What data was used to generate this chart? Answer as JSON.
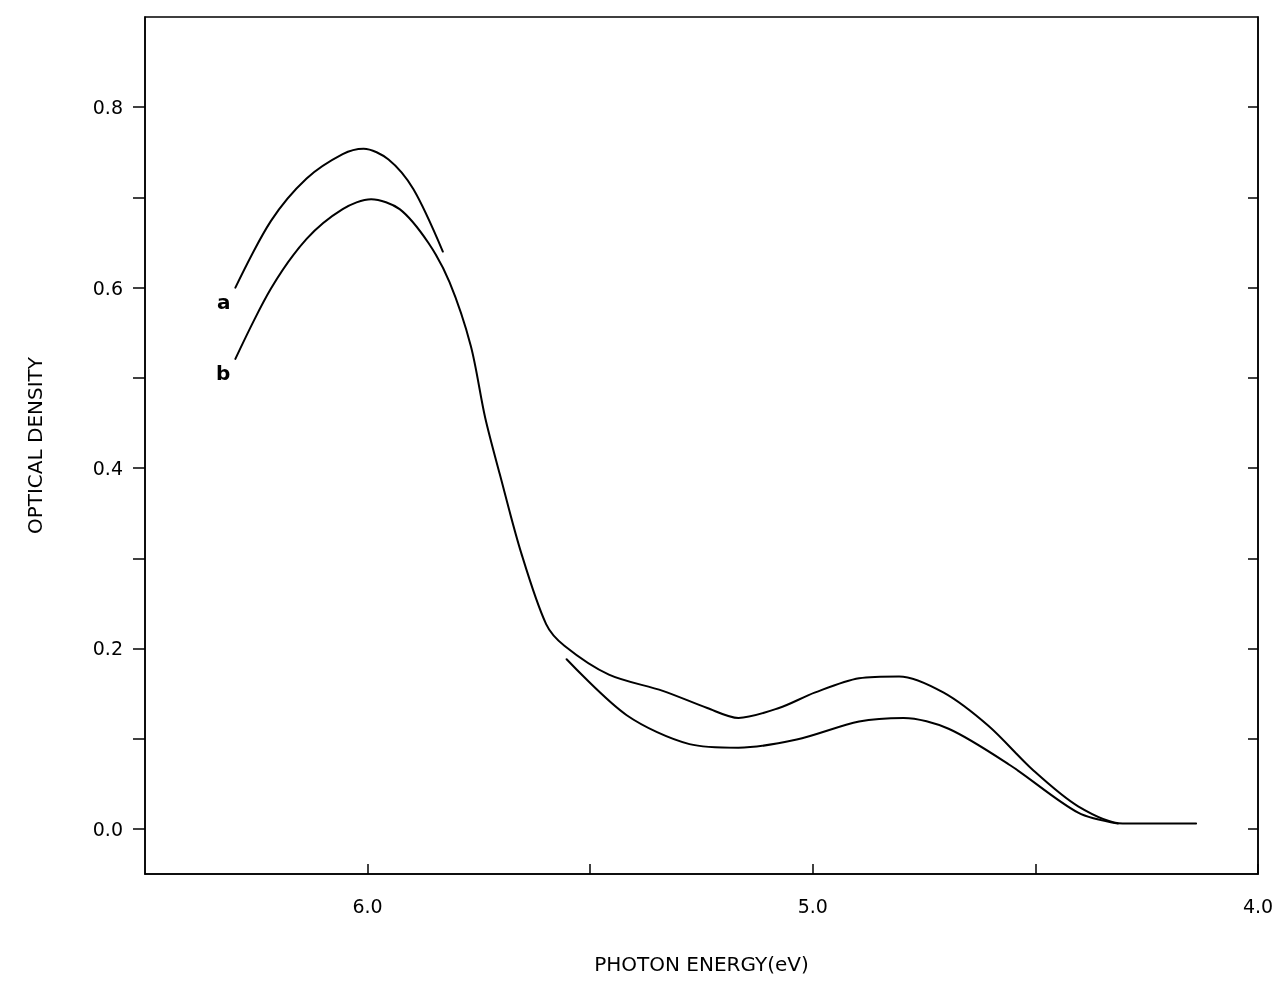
{
  "chart_data": {
    "type": "line",
    "xlabel": "PHOTON ENERGY(eV)",
    "ylabel": "OPTICAL DENSITY",
    "xlim": [
      6.5,
      4.0
    ],
    "xticks": [
      {
        "value": 6,
        "label": "6.0"
      },
      {
        "value": 5.5,
        "label": null
      },
      {
        "value": 5,
        "label": "5.0"
      },
      {
        "value": 4.5,
        "label": null
      },
      {
        "value": 4,
        "label": "4.0"
      }
    ],
    "ylim": [
      -0.05,
      0.9
    ],
    "yticks": [
      {
        "value": 0,
        "label": "0.0"
      },
      {
        "value": 0.1,
        "label": null
      },
      0.2,
      {
        "value": 0.3,
        "label": null
      },
      0.4,
      {
        "value": 0.5,
        "label": null
      },
      0.6,
      {
        "value": 0.7,
        "label": null
      },
      0.8
    ],
    "grid": false,
    "legend": false,
    "marker": "none",
    "line_style": "solid",
    "series": [
      {
        "name": "a",
        "color": "#000000",
        "x": [
          6.297,
          6.217,
          6.137,
          6.056,
          6.009,
          5.953,
          5.897,
          5.831,
          5.7,
          5.553,
          5.418,
          5.277,
          5.167,
          5.036,
          4.896,
          4.796,
          4.695,
          4.555,
          4.404,
          4.315
        ],
        "values": [
          0.6,
          0.674,
          0.721,
          0.748,
          0.754,
          0.742,
          0.709,
          0.64,
          null,
          0.188,
          0.126,
          0.094,
          0.09,
          0.099,
          0.119,
          0.123,
          0.111,
          0.07,
          0.018,
          0.006
        ]
      },
      {
        "name": "b",
        "color": "#000000",
        "x": [
          6.297,
          6.217,
          6.137,
          6.056,
          5.992,
          5.928,
          5.864,
          5.816,
          5.768,
          5.736,
          5.703,
          5.655,
          5.599,
          5.558,
          5.458,
          5.337,
          5.237,
          5.167,
          5.076,
          4.996,
          4.896,
          4.806,
          4.706,
          4.605,
          4.505,
          4.404,
          4.304,
          4.139
        ],
        "values": [
          0.521,
          0.599,
          0.654,
          0.687,
          0.698,
          0.687,
          0.65,
          0.606,
          0.535,
          0.456,
          0.393,
          0.306,
          0.227,
          0.203,
          0.171,
          0.153,
          0.134,
          0.123,
          0.134,
          0.151,
          0.167,
          0.169,
          0.151,
          0.114,
          0.065,
          0.025,
          0.006,
          0.006
        ]
      }
    ]
  }
}
